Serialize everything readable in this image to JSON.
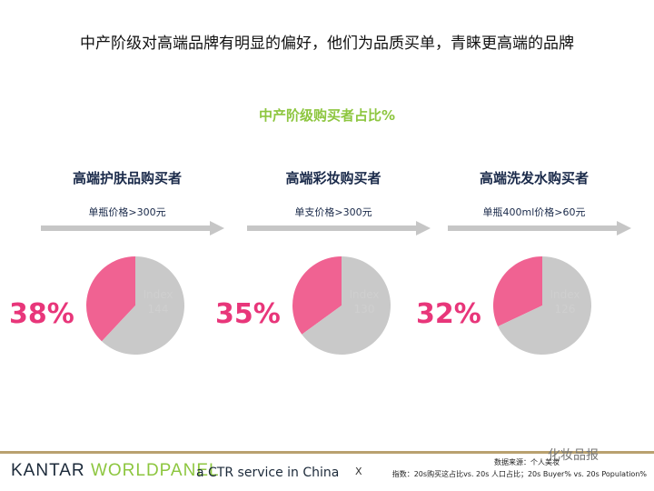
{
  "headline": "中产阶级对高端品牌有明显的偏好，他们为品质买单，青睐更高端的品牌",
  "subtitle": "中产阶级购买者占比%",
  "colors": {
    "highlight": "#f06292",
    "rest": "#c9c9c9",
    "arrow": "#c6c6c6",
    "pct": "#e8367a"
  },
  "panels": [
    {
      "title": "高端护肤品购买者",
      "note": "单瓶价格>300元",
      "pct": "38%",
      "index_label": "Index",
      "index_value": "144"
    },
    {
      "title": "高端彩妆购买者",
      "note": "单支价格>300元",
      "pct": "35%",
      "index_label": "Index",
      "index_value": "130"
    },
    {
      "title": "高端洗发水购买者",
      "note": "单瓶400ml价格>60元",
      "pct": "32%",
      "index_label": "Index",
      "index_value": "126"
    }
  ],
  "chart_data": [
    {
      "type": "pie",
      "title": "高端护肤品购买者",
      "slices": [
        {
          "label": "中产阶级",
          "value": 38
        },
        {
          "label": "",
          "value": 62
        }
      ],
      "annotation": "Index 144"
    },
    {
      "type": "pie",
      "title": "高端彩妆购买者",
      "slices": [
        {
          "label": "中产阶级",
          "value": 35
        },
        {
          "label": "",
          "value": 65
        }
      ],
      "annotation": "Index 130"
    },
    {
      "type": "pie",
      "title": "高端洗发水购买者",
      "slices": [
        {
          "label": "中产阶级",
          "value": 32
        },
        {
          "label": "",
          "value": 68
        }
      ],
      "annotation": "Index 126"
    }
  ],
  "footer": {
    "brand_a": "KANTAR ",
    "brand_b": "WORLDPANEL",
    "service": "a CTR service in China",
    "x": "X",
    "source_line1": "数据来源：个人美妆",
    "source_line2": "指数：20s购买这占比vs. 20s 人口占比；20s Buyer% vs. 20s Population%",
    "watermark": "化妆品报"
  }
}
